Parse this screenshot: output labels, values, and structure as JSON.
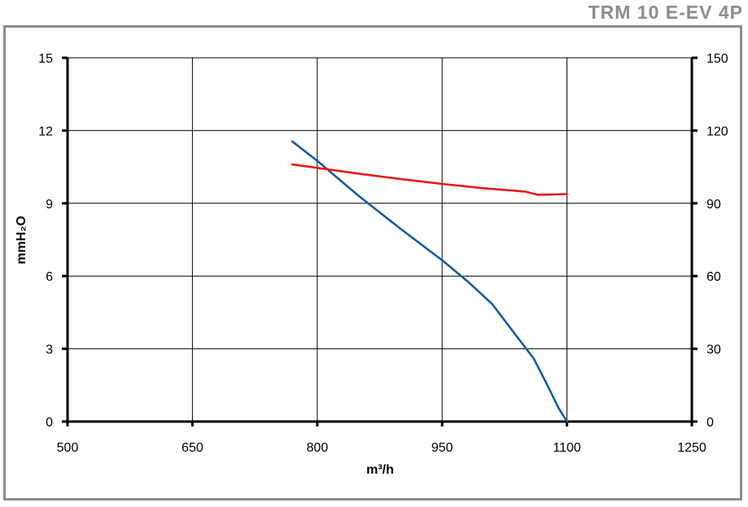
{
  "header": {
    "model": "TRM 10 E-EV 4P"
  },
  "chart_data": {
    "type": "line",
    "title": "",
    "xlabel": "m³/h",
    "ylabel": "mmH₂O",
    "xlim": [
      500,
      1250
    ],
    "ylim": [
      0,
      15
    ],
    "y2lim": [
      0,
      150
    ],
    "x_ticks": [
      "500",
      "650",
      "800",
      "950",
      "1100",
      "1250"
    ],
    "y_ticks": [
      "0",
      "3",
      "6",
      "9",
      "12",
      "15"
    ],
    "y2_ticks": [
      "0",
      "30",
      "60",
      "90",
      "120",
      "150"
    ],
    "grid": true,
    "legend": "none",
    "series": [
      {
        "axis": "left",
        "color": "#1a5aa0",
        "x": [
          770,
          800,
          850,
          900,
          950,
          980,
          1010,
          1040,
          1060,
          1075,
          1090,
          1100
        ],
        "y": [
          11.55,
          10.75,
          9.3,
          7.95,
          6.65,
          5.8,
          4.85,
          3.5,
          2.6,
          1.6,
          0.55,
          0.0
        ]
      },
      {
        "axis": "right",
        "color": "#e41a1c",
        "x": [
          770,
          800,
          850,
          900,
          950,
          1000,
          1050,
          1065,
          1080,
          1100
        ],
        "y": [
          106,
          104.6,
          102.2,
          100.0,
          98.0,
          96.2,
          94.8,
          93.5,
          93.6,
          93.8
        ]
      }
    ]
  }
}
